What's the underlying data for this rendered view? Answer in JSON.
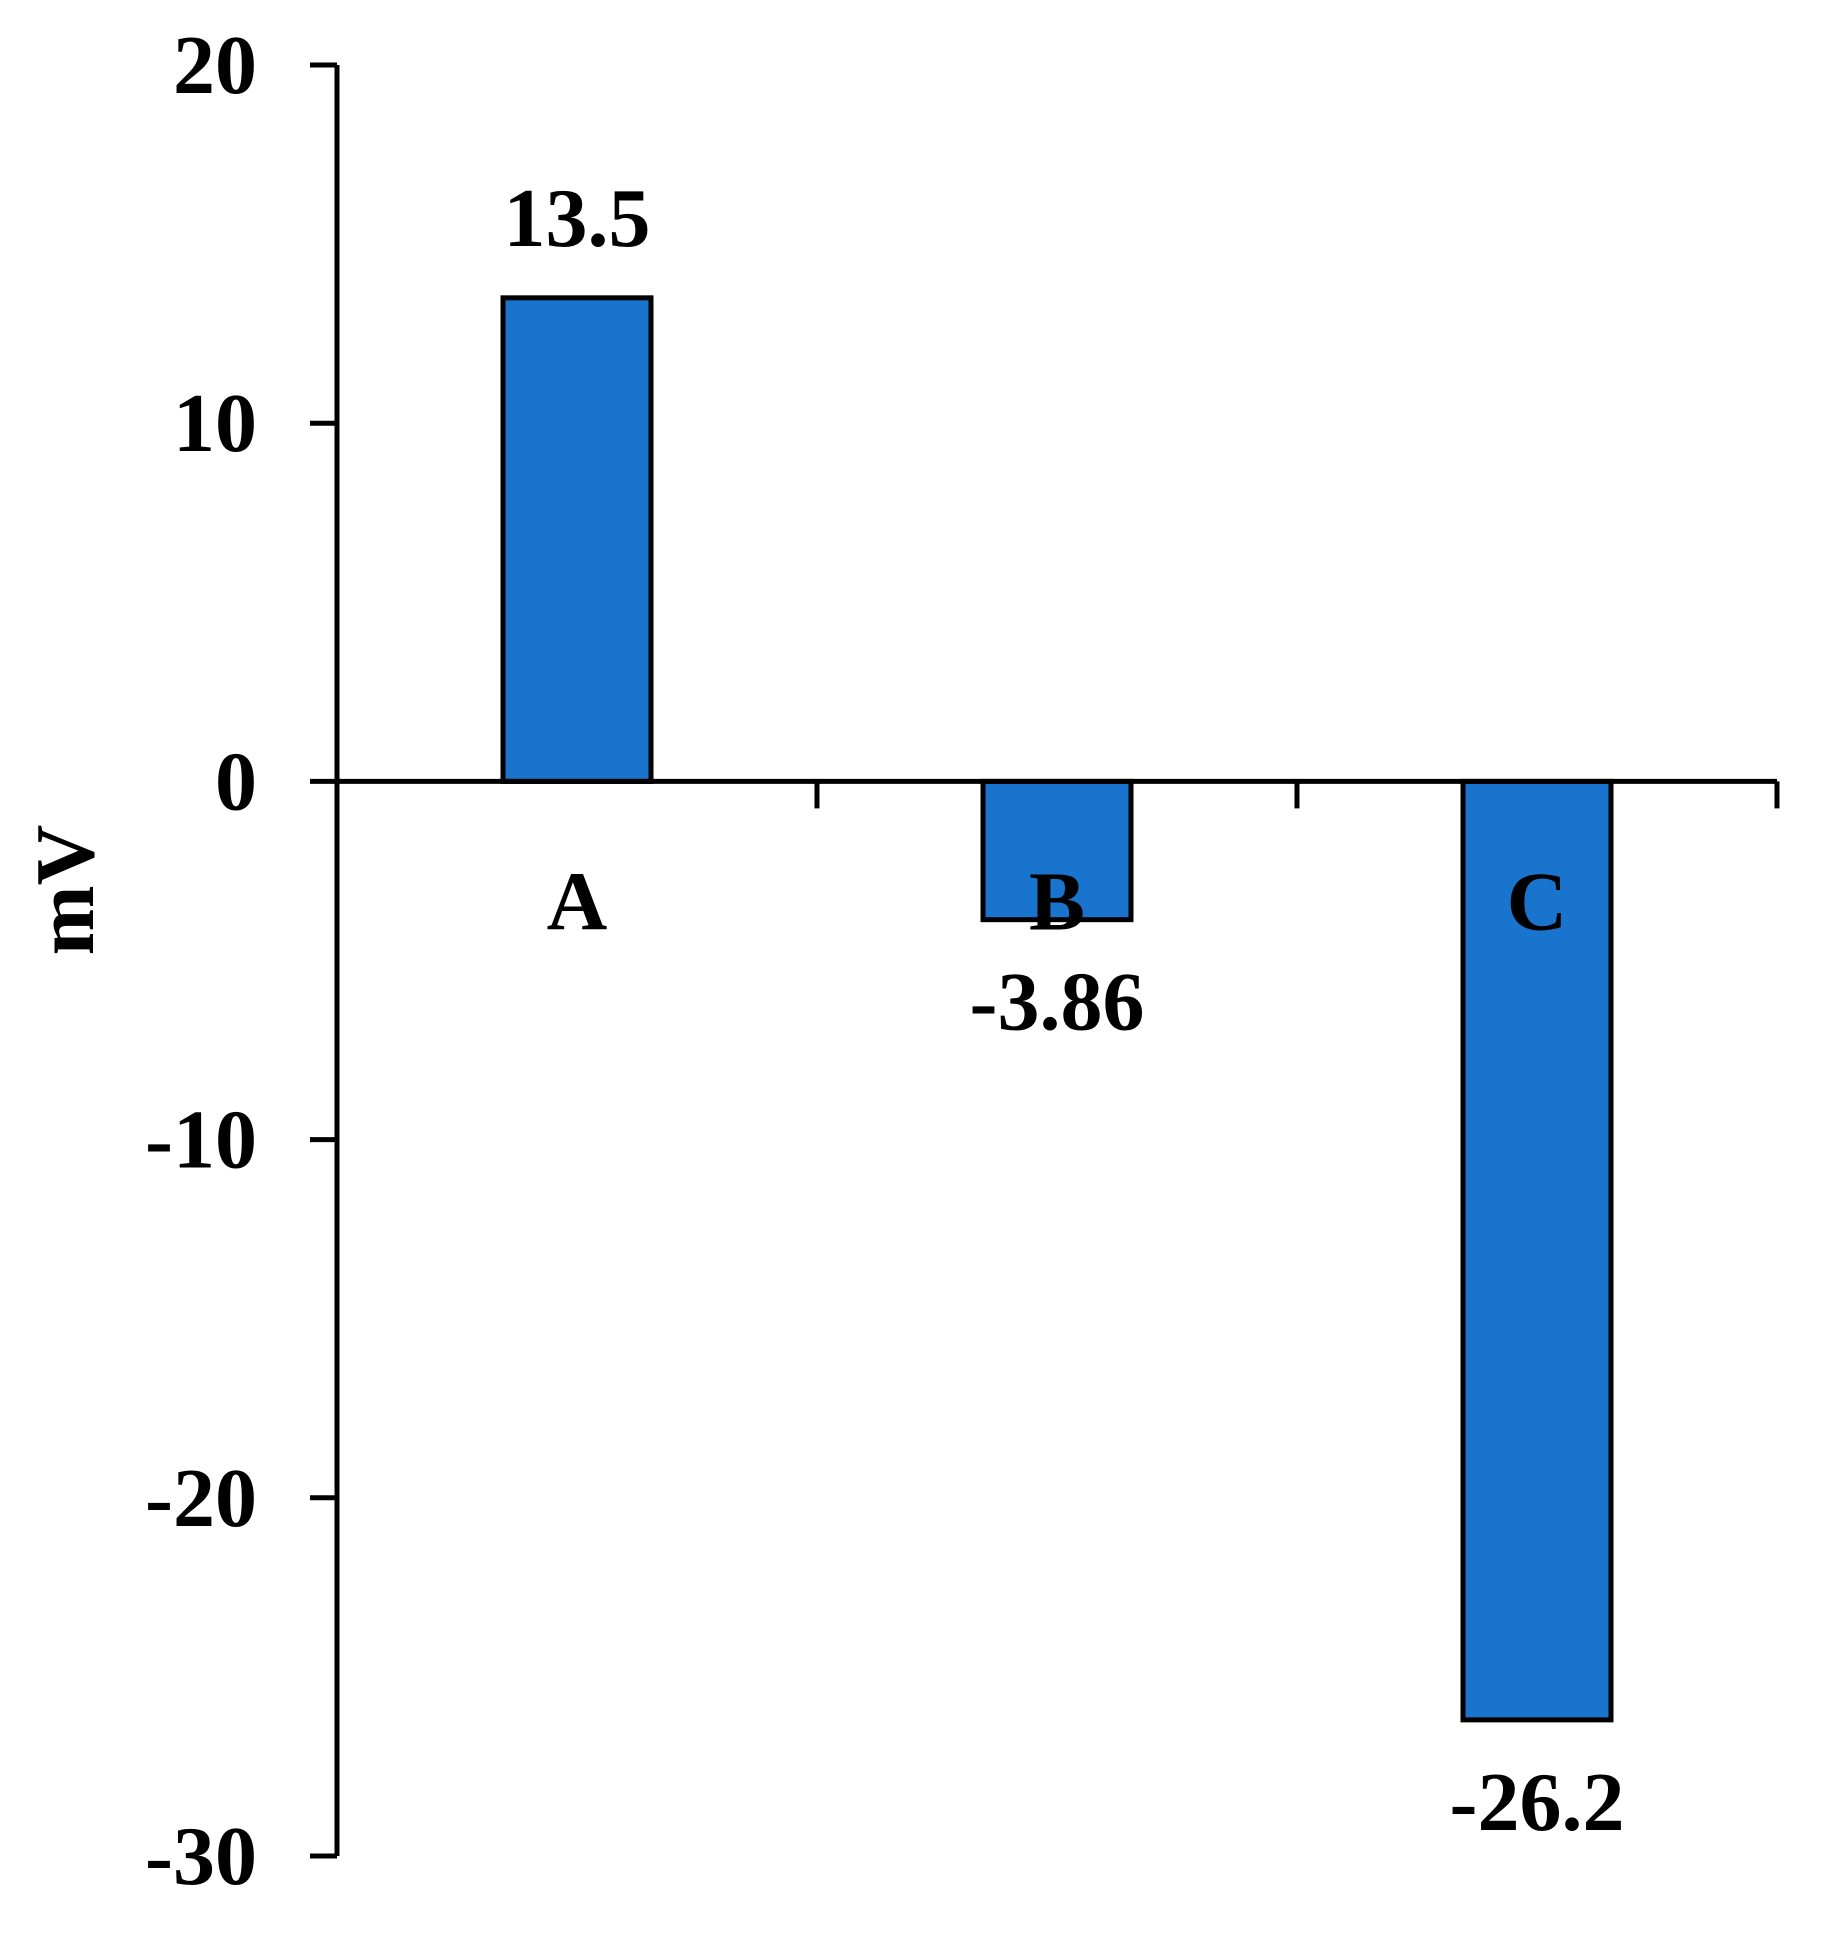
{
  "chart_data": {
    "type": "bar",
    "title": "",
    "xlabel": "",
    "ylabel": "mV",
    "categories": [
      "A",
      "B",
      "C"
    ],
    "values": [
      13.5,
      -3.86,
      -26.2
    ],
    "data_labels": [
      "13.5",
      "-3.86",
      "-26.2"
    ],
    "ylim": [
      -30,
      20
    ],
    "yticks": [
      20,
      10,
      0,
      -10,
      -20,
      -30
    ],
    "ytick_labels": [
      "20",
      "10",
      "0",
      "-10",
      "-20",
      "-30"
    ],
    "grid": false,
    "legend": "none",
    "bar_color": "#1874CD",
    "bar_edge_color": "#000000"
  }
}
